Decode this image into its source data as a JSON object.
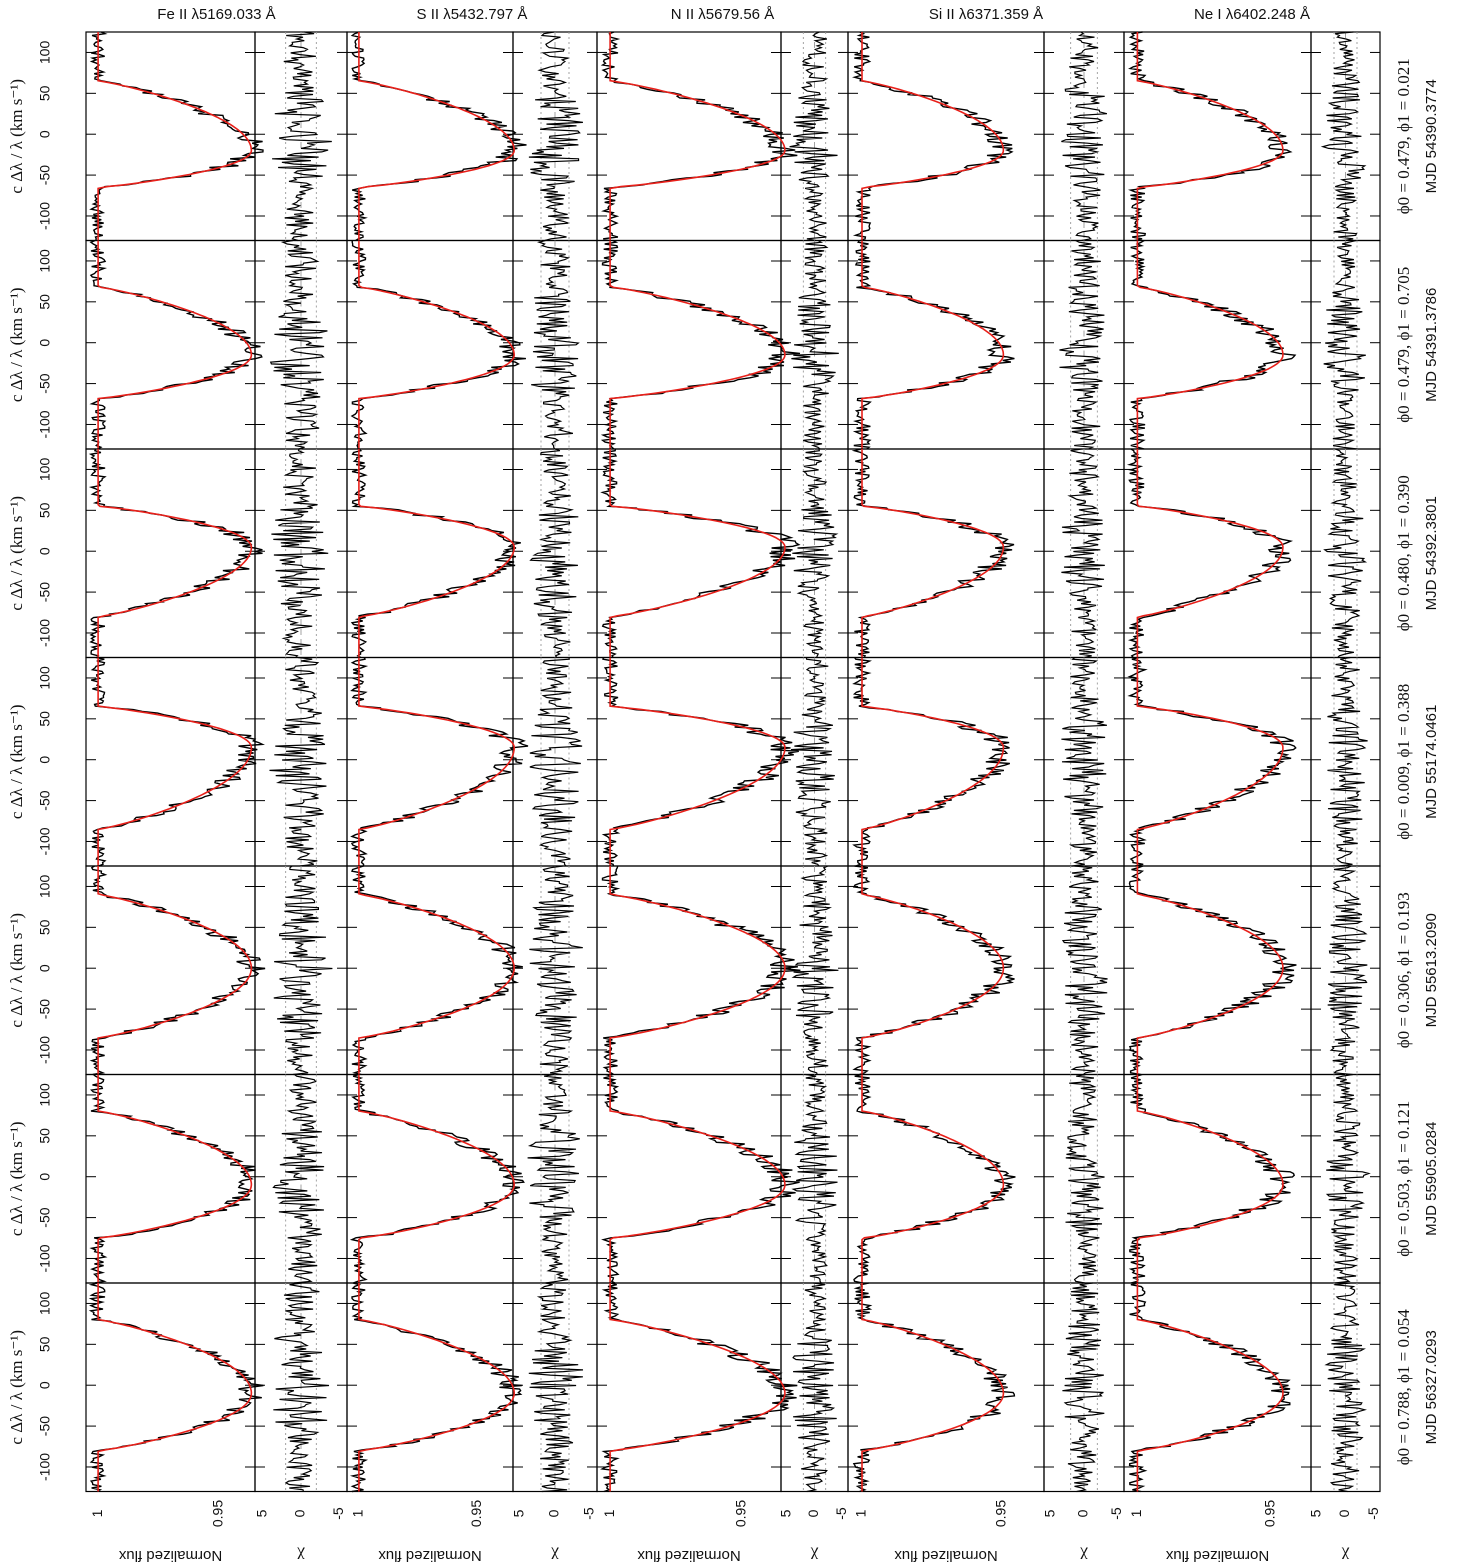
{
  "figure": {
    "columns": [
      {
        "line": "Fe II λ5169.033 Å",
        "id": "fe"
      },
      {
        "line": "S II λ5432.797 Å",
        "id": "s"
      },
      {
        "line": "N II λ5679.56 Å",
        "id": "n"
      },
      {
        "line": "Si II λ6371.359 Å",
        "id": "si"
      },
      {
        "line": "Ne I λ6402.248 Å",
        "id": "ne"
      }
    ],
    "rows": [
      {
        "phase": "ϕ0 = 0.479, ϕ1 = 0.021",
        "mjd": "MJD 54390.3774"
      },
      {
        "phase": "ϕ0 = 0.479, ϕ1 = 0.705",
        "mjd": "MJD 54391.3786"
      },
      {
        "phase": "ϕ0 = 0.480, ϕ1 = 0.390",
        "mjd": "MJD 54392.3801"
      },
      {
        "phase": "ϕ0 = 0.009, ϕ1 = 0.388",
        "mjd": "MJD 55174.0461"
      },
      {
        "phase": "ϕ0 = 0.306, ϕ1 = 0.193",
        "mjd": "MJD 55613.2090"
      },
      {
        "phase": "ϕ0 = 0.503, ϕ1 = 0.121",
        "mjd": "MJD 55905.0284"
      },
      {
        "phase": "ϕ0 = 0.788, ϕ1 = 0.054",
        "mjd": "MJD 56327.0293"
      }
    ],
    "velocity_axis_label": "c Δλ / λ (km s⁻¹)",
    "flux_axis_label": "Normalized flux",
    "chi_axis_label": "χ"
  },
  "chart_data": {
    "type": "line",
    "layout": "grid 7 observations × 5 spectral lines, each cell = line profile + residual panel",
    "velocity_range_kms": [
      -130,
      125
    ],
    "velocity_ticks": [
      -100,
      -50,
      0,
      50,
      100
    ],
    "velocity_tick_labels": [
      "-100",
      "-50",
      "0",
      "50",
      "100"
    ],
    "flux_range": [
      1.005,
      0.935
    ],
    "flux_ticks_labelled": [
      1,
      0.95
    ],
    "flux_tick_labels": [
      "1",
      "0.95"
    ],
    "chi_range": [
      6,
      -6
    ],
    "chi_ticks": [
      5,
      0,
      -5
    ],
    "chi_tick_labels": [
      "5",
      "0",
      "-5"
    ],
    "series": [
      {
        "role": "observed",
        "color": "#000000"
      },
      {
        "role": "model",
        "color": "#e8201a"
      },
      {
        "role": "masked",
        "color": "#b5b5b5"
      }
    ],
    "line_depth": {
      "fe": 0.0635,
      "s": 0.0655,
      "n": 0.0665,
      "si": 0.0505,
      "ne": 0.0545
    },
    "profiles": [
      {
        "obs": "MJD 54390.3774",
        "v_blue_edge": -65,
        "v_red_edge": 65,
        "v_center": -20,
        "shape": "steep blue edge, flat bottom"
      },
      {
        "obs": "MJD 54391.3786",
        "v_blue_edge": -68,
        "v_red_edge": 68,
        "v_center": -15,
        "shape": "steep blue edge, asymmetric"
      },
      {
        "obs": "MJD 54392.3801",
        "v_blue_edge": -80,
        "v_red_edge": 55,
        "v_center": 5,
        "shape": "steep red edge"
      },
      {
        "obs": "MJD 55174.0461",
        "v_blue_edge": -85,
        "v_red_edge": 65,
        "v_center": 15,
        "shape": "sloped blue wing"
      },
      {
        "obs": "MJD 55613.2090",
        "v_blue_edge": -85,
        "v_red_edge": 90,
        "v_center": 0,
        "shape": "triangular"
      },
      {
        "obs": "MJD 55905.0284",
        "v_blue_edge": -75,
        "v_red_edge": 80,
        "v_center": -10,
        "shape": "broad rounded"
      },
      {
        "obs": "MJD 56327.0293",
        "v_blue_edge": -80,
        "v_red_edge": 80,
        "v_center": -10,
        "shape": "steep blue edge"
      }
    ]
  }
}
